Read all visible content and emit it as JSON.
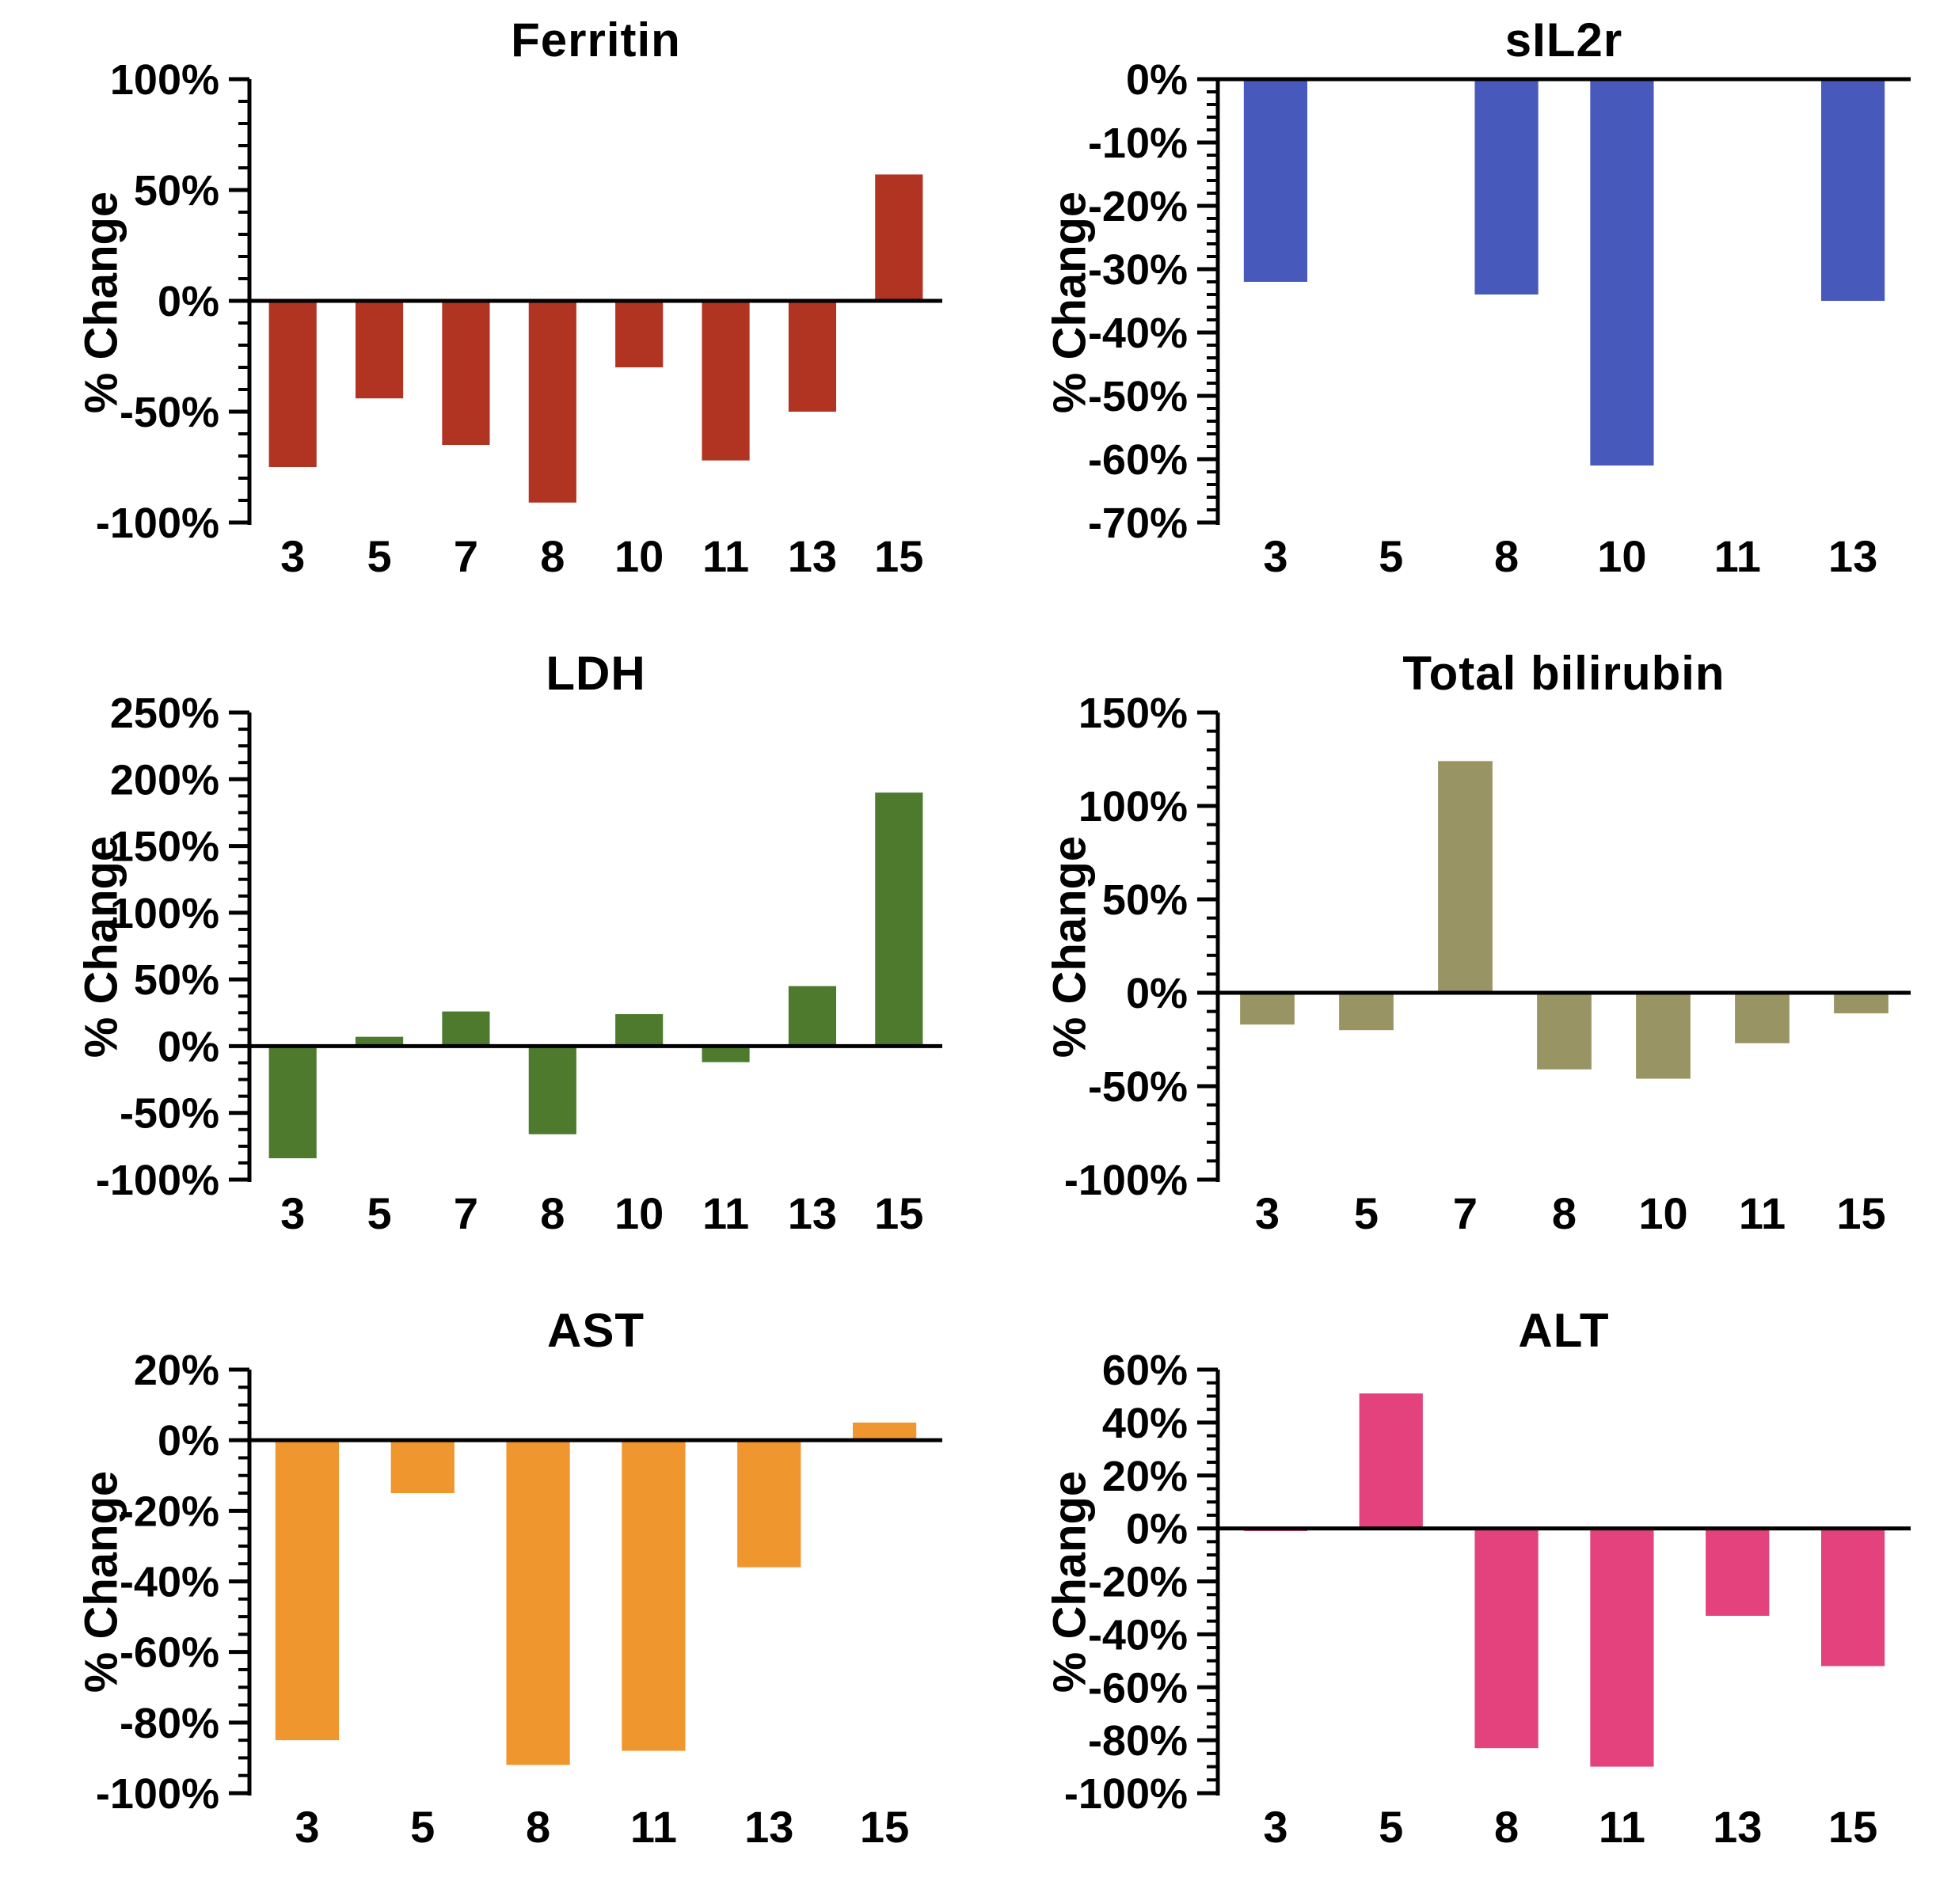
{
  "figure": {
    "background": "#ffffff",
    "axis_color": "#000000",
    "text_color": "#000000"
  },
  "chart_data": [
    {
      "type": "bar",
      "title": "Ferritin",
      "ylabel": "% Change",
      "categories": [
        "3",
        "5",
        "7",
        "8",
        "10",
        "11",
        "13",
        "15"
      ],
      "values": [
        -75,
        -44,
        -65,
        -91,
        -30,
        -72,
        -50,
        57
      ],
      "ylim": [
        -100,
        100
      ],
      "y_major_step": 50,
      "y_minor_step": 10,
      "y_tick_labels": [
        "100%",
        "50%",
        "0%",
        "-50%",
        "-100%"
      ],
      "bar_color": "#B13322",
      "grid": false,
      "legend": "none"
    },
    {
      "type": "bar",
      "title": "sIL2r",
      "ylabel": "% Change",
      "categories": [
        "3",
        "5",
        "8",
        "10",
        "11",
        "13"
      ],
      "values": [
        -32,
        0,
        -34,
        -61,
        0,
        -35
      ],
      "ylim": [
        -70,
        0
      ],
      "y_major_step": 10,
      "y_minor_step": 2,
      "y_tick_labels": [
        "0%",
        "-10%",
        "-20%",
        "-30%",
        "-40%",
        "-50%",
        "-60%",
        "-70%"
      ],
      "bar_color": "#4859BC",
      "grid": false,
      "legend": "none"
    },
    {
      "type": "bar",
      "title": "LDH",
      "ylabel": "% Change",
      "categories": [
        "3",
        "5",
        "7",
        "8",
        "10",
        "11",
        "13",
        "15"
      ],
      "values": [
        -84,
        7,
        26,
        -66,
        24,
        -12,
        45,
        190
      ],
      "ylim": [
        -100,
        250
      ],
      "y_major_step": 50,
      "y_minor_step": 12.5,
      "y_tick_labels": [
        "250%",
        "200%",
        "150%",
        "100%",
        "50%",
        "0%",
        "-50%",
        "-100%"
      ],
      "bar_color": "#4E7A2D",
      "grid": false,
      "legend": "none"
    },
    {
      "type": "bar",
      "title": "Total bilirubin",
      "ylabel": "% Change",
      "categories": [
        "3",
        "5",
        "7",
        "8",
        "10",
        "11",
        "15"
      ],
      "values": [
        -17,
        -20,
        124,
        -41,
        -46,
        -27,
        -11
      ],
      "ylim": [
        -100,
        150
      ],
      "y_major_step": 50,
      "y_minor_step": 10,
      "y_tick_labels": [
        "150%",
        "100%",
        "50%",
        "0%",
        "-50%",
        "-100%"
      ],
      "bar_color": "#999463",
      "grid": false,
      "legend": "none"
    },
    {
      "type": "bar",
      "title": "AST",
      "ylabel": "% Change",
      "categories": [
        "3",
        "5",
        "8",
        "11",
        "13",
        "15"
      ],
      "values": [
        -85,
        -15,
        -92,
        -88,
        -36,
        5
      ],
      "ylim": [
        -100,
        20
      ],
      "y_major_step": 20,
      "y_minor_step": 5,
      "y_tick_labels": [
        "20%",
        "0%",
        "-20%",
        "-40%",
        "-60%",
        "-80%",
        "-100%"
      ],
      "bar_color": "#F0962E",
      "grid": false,
      "legend": "none"
    },
    {
      "type": "bar",
      "title": "ALT",
      "ylabel": "% Change",
      "categories": [
        "3",
        "5",
        "8",
        "11",
        "13",
        "15"
      ],
      "values": [
        -1,
        51,
        -83,
        -90,
        -33,
        -52
      ],
      "ylim": [
        -100,
        60
      ],
      "y_major_step": 20,
      "y_minor_step": 5,
      "y_tick_labels": [
        "60%",
        "40%",
        "20%",
        "0%",
        "-20%",
        "-40%",
        "-60%",
        "-80%",
        "-100%"
      ],
      "bar_color": "#E4427C",
      "grid": false,
      "legend": "none"
    }
  ]
}
